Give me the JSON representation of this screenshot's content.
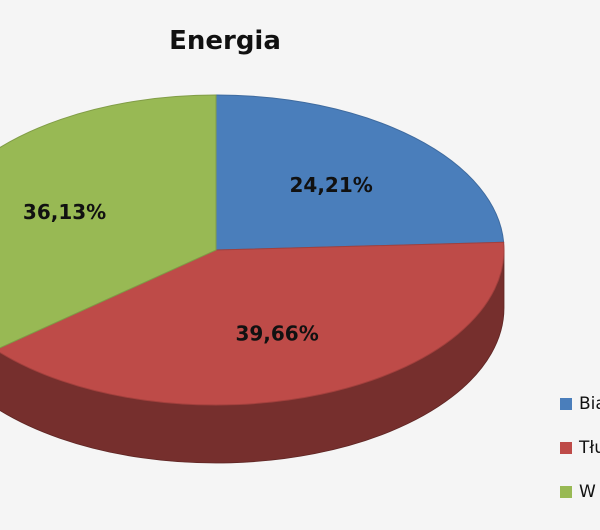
{
  "chart_data": {
    "type": "pie",
    "title": "Energia",
    "labels": [
      "Bia",
      "Tłu",
      "W"
    ],
    "values": [
      24.21,
      39.66,
      36.13
    ],
    "value_labels": [
      "24,21%",
      "39,66%",
      "36,13%"
    ],
    "colors": [
      "#4a7ebb",
      "#be4b48",
      "#98b954"
    ],
    "legend_position": "right",
    "style": "3d"
  }
}
